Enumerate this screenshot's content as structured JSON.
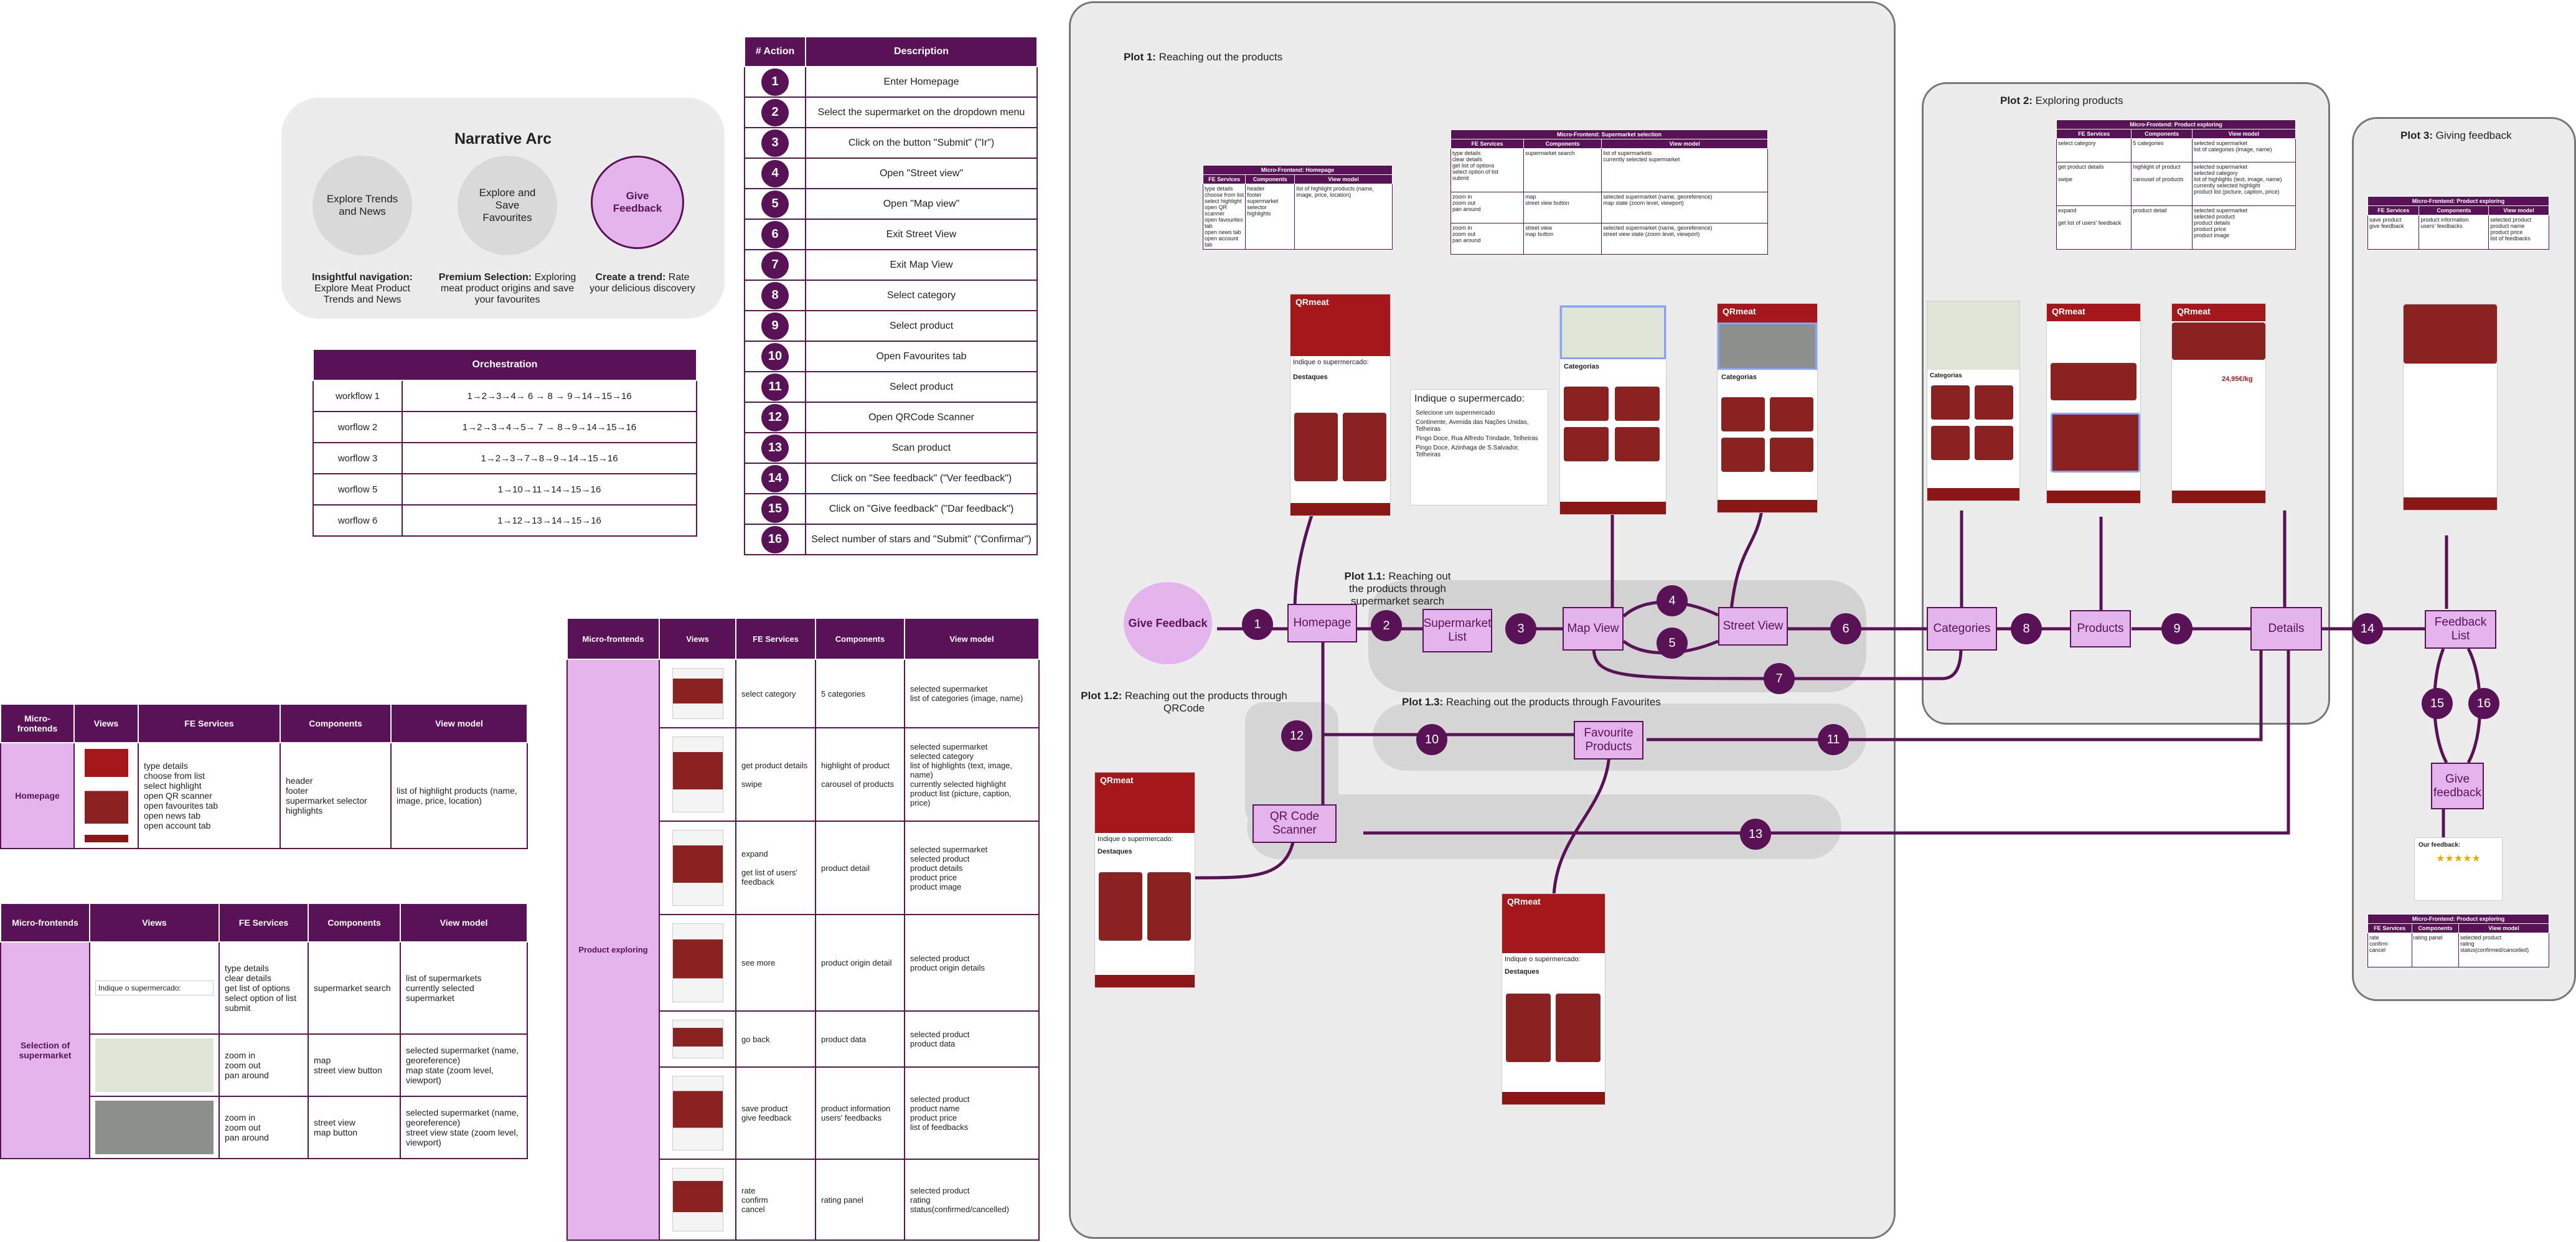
{
  "narrative": {
    "title": "Narrative Arc",
    "circles": [
      {
        "label": "Explore Trends and News",
        "caption_bold": "Insightful navigation:",
        "caption": "Explore Meat Product Trends and News"
      },
      {
        "label": "Explore and Save Favourites",
        "caption_bold": "Premium Selection:",
        "caption": "Exploring meat product origins and save your favourites"
      },
      {
        "label": "Give Feedback",
        "caption_bold": "Create a trend:",
        "caption": "Rate your delicious discovery"
      }
    ]
  },
  "orchestration": {
    "title": "Orchestration",
    "rows": [
      {
        "name": "workflow 1",
        "steps": "1→2→3→4→ 6 → 8 → 9→14→15→16"
      },
      {
        "name": "worflow 2",
        "steps": "1→2→3→4→5→ 7 → 8→9→14→15→16"
      },
      {
        "name": "worflow 3",
        "steps": "1→2→3→7→8→9→14→15→16"
      },
      {
        "name": "worflow 5",
        "steps": "1→10→11→14→15→16"
      },
      {
        "name": "worflow 6",
        "steps": "1→12→13→14→15→16"
      }
    ]
  },
  "actions": {
    "col_action": "# Action",
    "col_desc": "Description",
    "rows": [
      {
        "n": "1",
        "d": "Enter Homepage"
      },
      {
        "n": "2",
        "d": "Select the supermarket on the dropdown menu"
      },
      {
        "n": "3",
        "d": "Click on the button \"Submit\" (\"Ir\")"
      },
      {
        "n": "4",
        "d": "Open \"Street view\""
      },
      {
        "n": "5",
        "d": "Open \"Map view\""
      },
      {
        "n": "6",
        "d": "Exit Street View"
      },
      {
        "n": "7",
        "d": "Exit Map View"
      },
      {
        "n": "8",
        "d": "Select category"
      },
      {
        "n": "9",
        "d": "Select product"
      },
      {
        "n": "10",
        "d": "Open Favourites tab"
      },
      {
        "n": "11",
        "d": "Select product"
      },
      {
        "n": "12",
        "d": "Open QRCode Scanner"
      },
      {
        "n": "13",
        "d": "Scan product"
      },
      {
        "n": "14",
        "d": "Click on \"See feedback\" (\"Ver feedback\")"
      },
      {
        "n": "15",
        "d": "Click on \"Give feedback\" (\"Dar feedback\")"
      },
      {
        "n": "16",
        "d": "Select number of stars and \"Submit\" (\"Confirmar\")"
      }
    ]
  },
  "mf_homepage": {
    "headers": [
      "Micro-frontends",
      "Views",
      "FE Services",
      "Components",
      "View model"
    ],
    "name": "Homepage",
    "services": "type details\nchoose from list\nselect highlight\nopen QR scanner\nopen favourites tab\nopen news tab\nopen account tab",
    "components": "header\nfooter\nsupermarket selector\nhighlights",
    "viewmodel": "list of highlight products (name, image, price, location)"
  },
  "mf_selection": {
    "headers": [
      "Micro-frontends",
      "Views",
      "FE Services",
      "Components",
      "View model"
    ],
    "name": "Selection of supermarket",
    "rows": [
      {
        "services": "type details\nclear details\nget list of options\nselect option of list\nsubmit",
        "components": "supermarket search",
        "viewmodel": "list of supermarkets\ncurrently selected supermarket",
        "view_text": "Indique o supermercado:"
      },
      {
        "services": "zoom in\nzoom out\npan around",
        "components": "map\nstreet view button",
        "viewmodel": "selected supermarket (name, georeference)\nmap state (zoom level, viewport)"
      },
      {
        "services": "zoom in\nzoom out\npan around",
        "components": "street view\nmap button",
        "viewmodel": "selected supermarket (name, georeference)\nstreet view state (zoom level, viewport)"
      }
    ]
  },
  "mf_product": {
    "headers": [
      "Micro-frontends",
      "Views",
      "FE Services",
      "Components",
      "View model"
    ],
    "name": "Product exploring",
    "rows": [
      {
        "services": "select category",
        "components": "5 categories",
        "viewmodel": "selected supermarket\nlist of categories (image, name)"
      },
      {
        "services": "get product details\n\nswipe",
        "components": "highlight of product\n\ncarousel of products",
        "viewmodel": "selected supermarket\nselected category\nlist of highlights (text, image, name)\ncurrently selected highlight\nproduct list (picture, caption, price)"
      },
      {
        "services": "expand\n\nget list of users' feedback",
        "components": "product detail",
        "viewmodel": "selected supermarket\nselected product\nproduct details\nproduct price\nproduct image"
      },
      {
        "services": "see more",
        "components": "product origin detail",
        "viewmodel": "selected product\nproduct origin details"
      },
      {
        "services": "go back",
        "components": "product data",
        "viewmodel": "selected product\nproduct data"
      },
      {
        "services": "save product\ngive feedback",
        "components": "product information\nusers' feedbacks",
        "viewmodel": "selected product\nproduct name\nproduct price\nlist of feedbacks"
      },
      {
        "services": "rate\nconfirm\ncancel",
        "components": "rating panel",
        "viewmodel": "selected product\nrating\nstatus(confirmed/cancelled)"
      }
    ]
  },
  "flow": {
    "plot1": {
      "bold": "Plot 1:",
      "text": " Reaching out the products"
    },
    "plot11": {
      "bold": "Plot 1.1:",
      "text": " Reaching out the products through supermarket search"
    },
    "plot12": {
      "bold": "Plot 1.2:",
      "text": " Reaching out the products through QRCode"
    },
    "plot13": {
      "bold": "Plot 1.3:",
      "text": " Reaching out the products through Favourites"
    },
    "plot2": {
      "bold": "Plot 2:",
      "text": " Exploring products"
    },
    "plot3": {
      "bold": "Plot 3:",
      "text": " Giving feedback"
    },
    "nodes": {
      "give_feedback_start": "Give Feedback",
      "homepage": "Homepage",
      "supermarket_list": "Supermarket List",
      "map_view": "Map View",
      "street_view": "Street View",
      "categories": "Categories",
      "products": "Products",
      "details": "Details",
      "feedback_list": "Feedback List",
      "give_feedback": "Give feedback",
      "favourite_products": "Favourite Products",
      "qr_scanner": "QR Code Scanner"
    },
    "numbers": [
      "1",
      "2",
      "3",
      "4",
      "5",
      "6",
      "7",
      "8",
      "9",
      "10",
      "11",
      "12",
      "13",
      "14",
      "15",
      "16"
    ],
    "mini_tables": {
      "homepage_title": "Micro-Frontend: Homepage",
      "selection_title": "Micro-Frontend: Supermarket selection",
      "product_title": "Micro-Frontend: Product exploring",
      "feedback_title": "Micro-Frontend: Product exploring",
      "cols": [
        "FE Services",
        "Components",
        "View model"
      ]
    },
    "phone": {
      "brand": "QRmeat",
      "prompt": "Indique o supermercado:",
      "section": "Destaques",
      "categories": "Categorias",
      "dropdown_prompt": "Indique o supermercado:",
      "dropdown_items": [
        "Selecione um supermercado",
        "Continente, Avenida das Nações Unidas, Telheiras",
        "Pingo Doce, Rua Alfredo Trindade, Telheiras",
        "Pingo Doce, Azinhaga de S.Salvador, Telheiras"
      ],
      "feedback_title": "Our feedback:",
      "price": "24,95€/kg"
    }
  }
}
